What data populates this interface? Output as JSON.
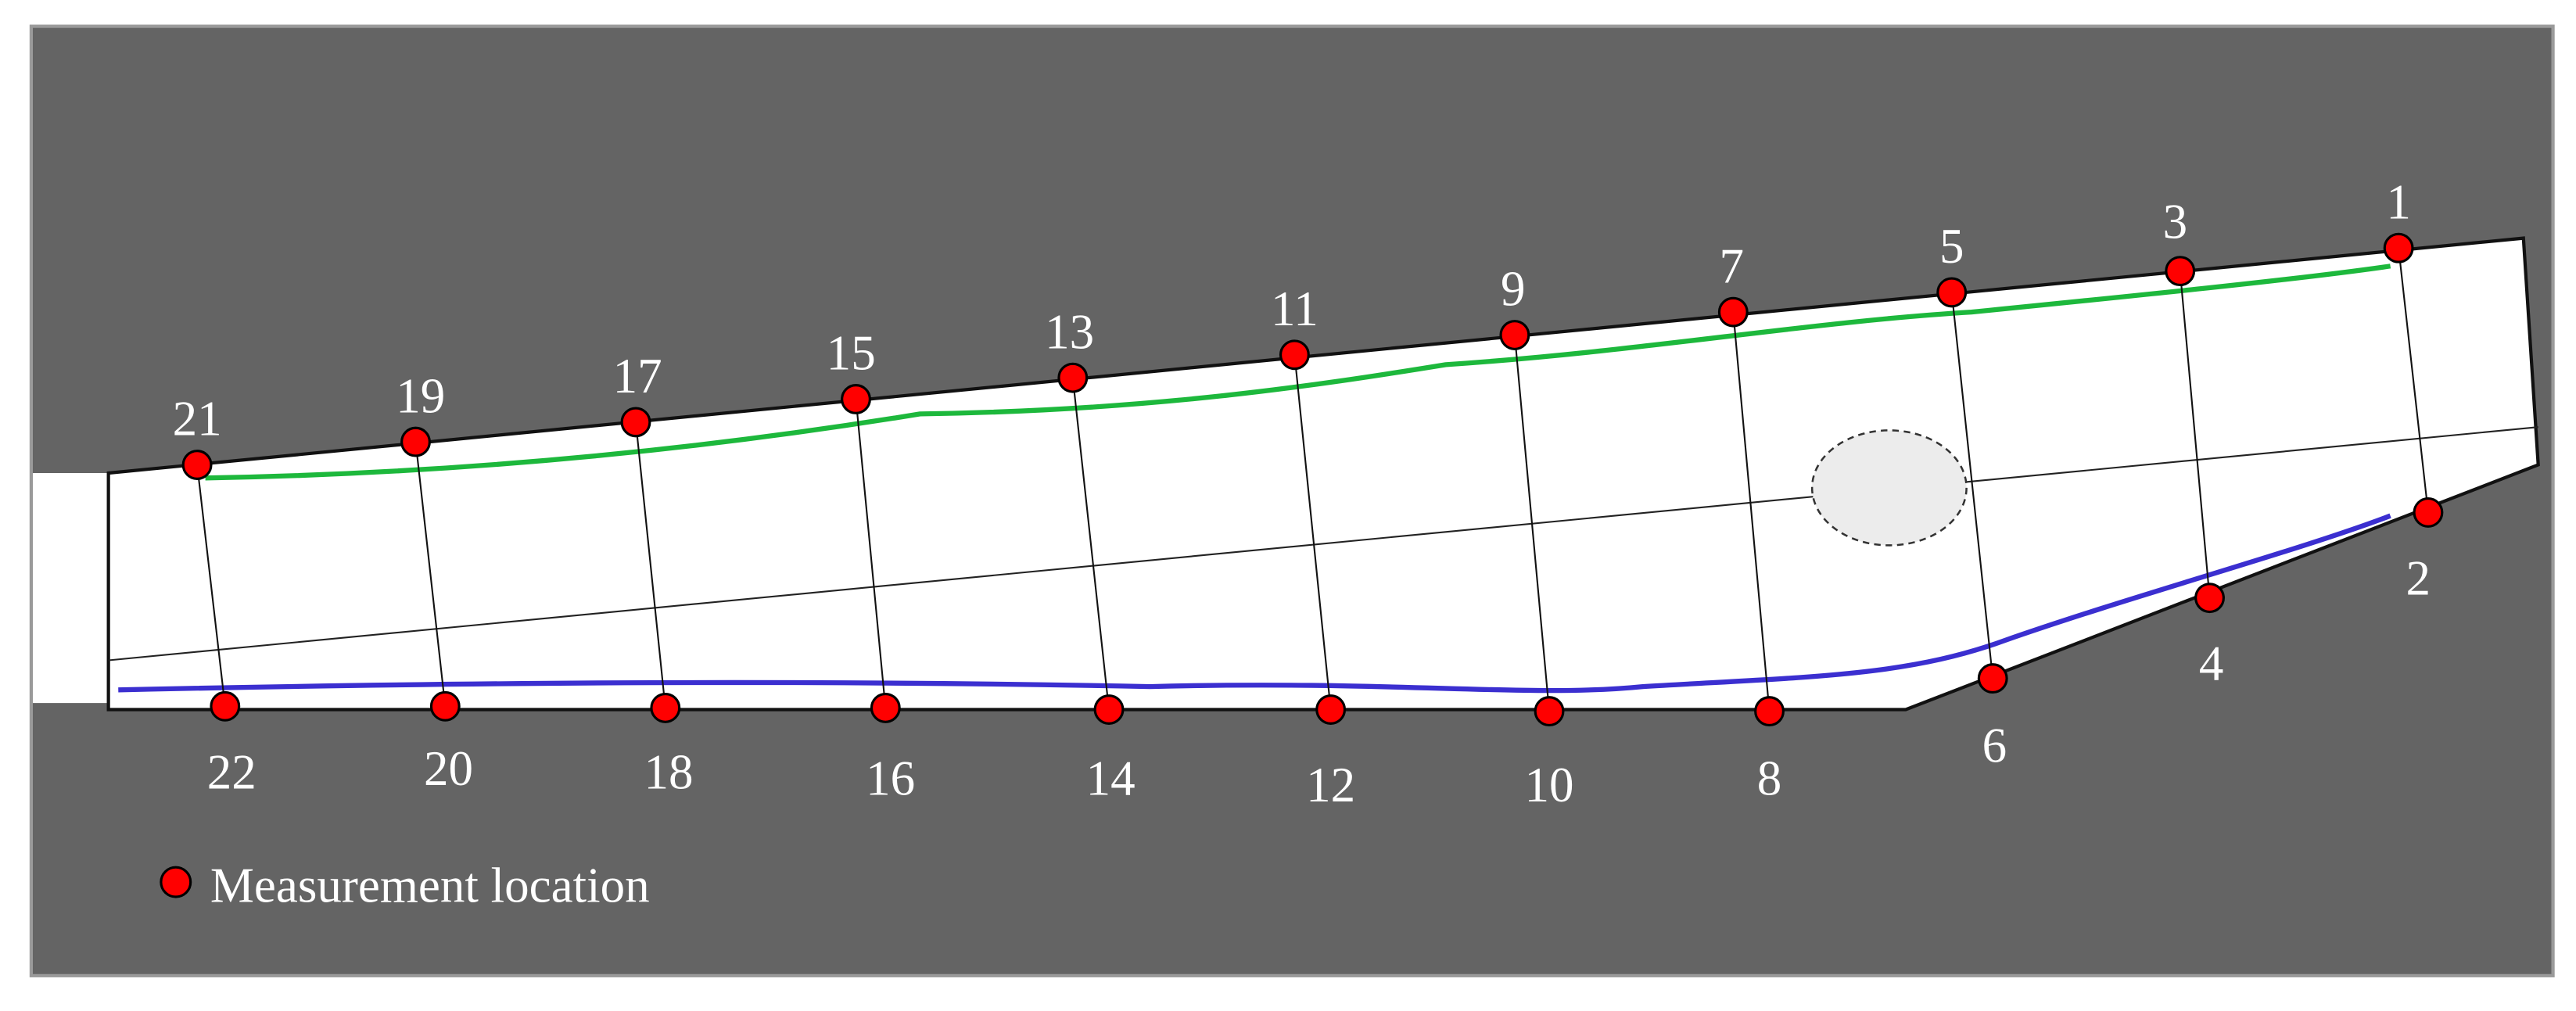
{
  "points": [
    {
      "label": "1"
    },
    {
      "label": "2"
    },
    {
      "label": "3"
    },
    {
      "label": "4"
    },
    {
      "label": "5"
    },
    {
      "label": "6"
    },
    {
      "label": "7"
    },
    {
      "label": "8"
    },
    {
      "label": "9"
    },
    {
      "label": "10"
    },
    {
      "label": "11"
    },
    {
      "label": "12"
    },
    {
      "label": "13"
    },
    {
      "label": "14"
    },
    {
      "label": "15"
    },
    {
      "label": "16"
    },
    {
      "label": "17"
    },
    {
      "label": "18"
    },
    {
      "label": "19"
    },
    {
      "label": "20"
    },
    {
      "label": "21"
    },
    {
      "label": "22"
    }
  ],
  "legend": {
    "label": "Measurement location"
  }
}
